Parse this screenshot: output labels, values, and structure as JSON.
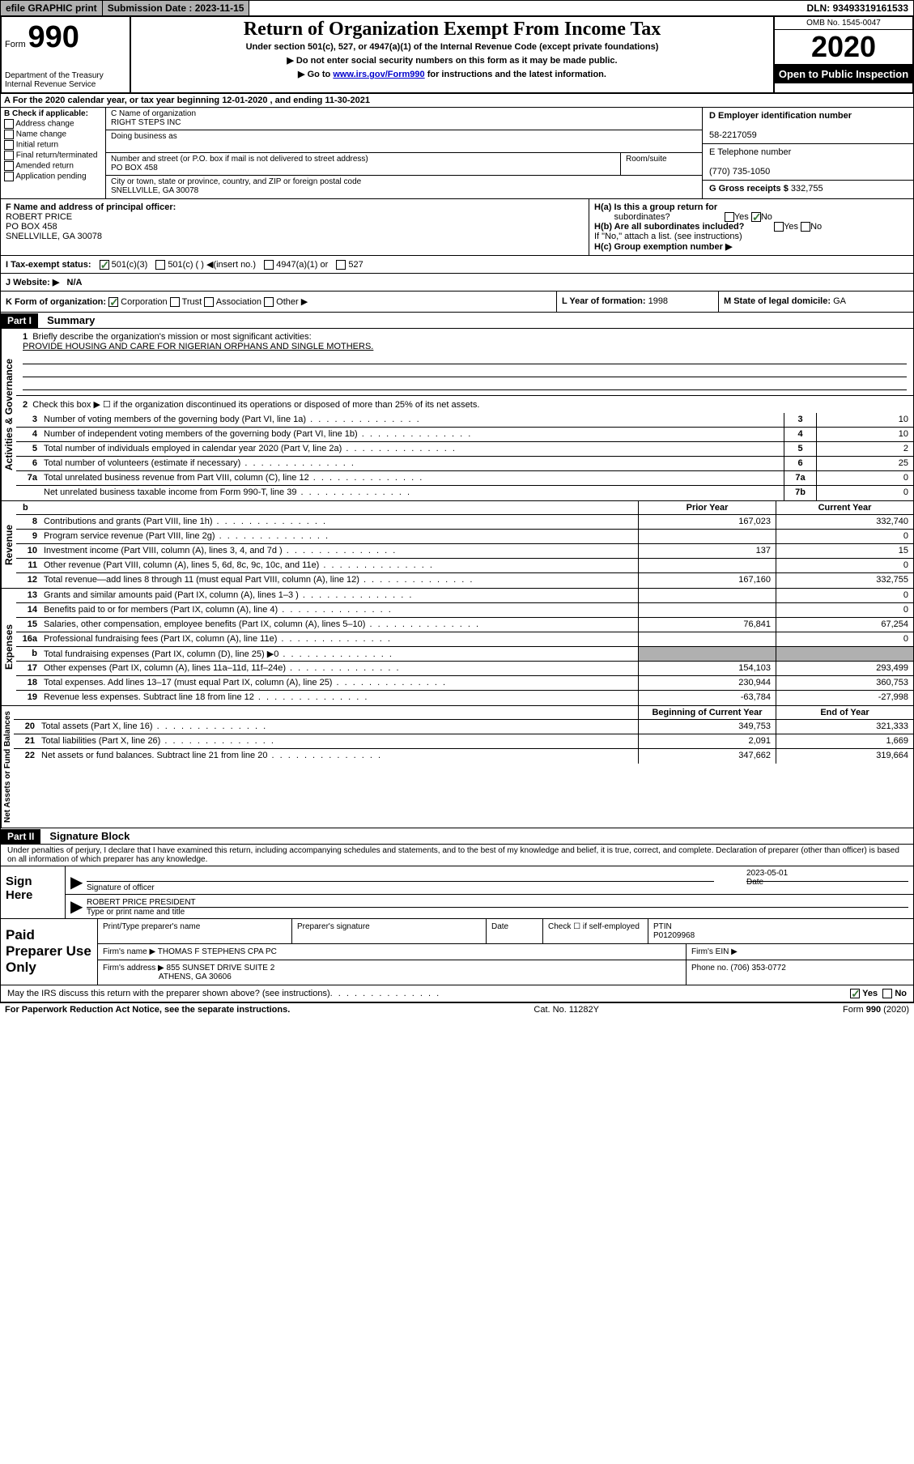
{
  "top_bar": {
    "efile": "efile GRAPHIC print",
    "submission_label": "Submission Date :",
    "submission_date": "2023-11-15",
    "dln_label": "DLN:",
    "dln": "93493319161533"
  },
  "header": {
    "form_label": "Form",
    "form_number": "990",
    "dept": "Department of the Treasury",
    "irs": "Internal Revenue Service",
    "title": "Return of Organization Exempt From Income Tax",
    "subtitle": "Under section 501(c), 527, or 4947(a)(1) of the Internal Revenue Code (except private foundations)",
    "note1": "▶ Do not enter social security numbers on this form as it may be made public.",
    "note2_pre": "▶ Go to ",
    "note2_link": "www.irs.gov/Form990",
    "note2_post": " for instructions and the latest information.",
    "omb": "OMB No. 1545-0047",
    "year": "2020",
    "open_public": "Open to Public Inspection"
  },
  "section_a": {
    "text": "A For the 2020 calendar year, or tax year beginning 12-01-2020    , and ending 11-30-2021"
  },
  "section_b": {
    "header": "B Check if applicable:",
    "items": [
      "Address change",
      "Name change",
      "Initial return",
      "Final return/terminated",
      "Amended return",
      "Application pending"
    ]
  },
  "section_c": {
    "name_label": "C Name of organization",
    "name": "RIGHT STEPS INC",
    "dba_label": "Doing business as",
    "dba": "",
    "street_label": "Number and street (or P.O. box if mail is not delivered to street address)",
    "street": "PO BOX 458",
    "room_label": "Room/suite",
    "city_label": "City or town, state or province, country, and ZIP or foreign postal code",
    "city": "SNELLVILLE, GA  30078"
  },
  "section_d": {
    "ein_label": "D Employer identification number",
    "ein": "58-2217059",
    "phone_label": "E Telephone number",
    "phone": "(770) 735-1050",
    "gross_label": "G Gross receipts $",
    "gross": "332,755"
  },
  "section_f": {
    "label": "F Name and address of principal officer:",
    "name": "ROBERT PRICE",
    "street": "PO BOX 458",
    "city": "SNELLVILLE, GA  30078"
  },
  "section_h": {
    "ha_label": "H(a)  Is this a group return for",
    "ha_sub": "subordinates?",
    "hb_label": "H(b)  Are all subordinates included?",
    "hb_note": "If \"No,\" attach a list. (see instructions)",
    "hc_label": "H(c)  Group exemption number ▶"
  },
  "section_i": {
    "label": "I    Tax-exempt status:",
    "opt1": "501(c)(3)",
    "opt2": "501(c) (  ) ◀(insert no.)",
    "opt3": "4947(a)(1) or",
    "opt4": "527"
  },
  "section_j": {
    "label": "J   Website: ▶",
    "value": "N/A"
  },
  "section_k": {
    "label": "K Form of organization:",
    "opts": [
      "Corporation",
      "Trust",
      "Association",
      "Other ▶"
    ],
    "l_label": "L Year of formation:",
    "l_value": "1998",
    "m_label": "M State of legal domicile:",
    "m_value": "GA"
  },
  "part1": {
    "header": "Part I",
    "title": "Summary",
    "line1_label": "Briefly describe the organization's mission or most significant activities:",
    "line1_value": "PROVIDE HOUSING AND CARE FOR NIGERIAN ORPHANS AND SINGLE MOTHERS.",
    "line2": "Check this box ▶ ☐  if the organization discontinued its operations or disposed of more than 25% of its net assets.",
    "governance_label": "Activities & Governance",
    "lines": [
      {
        "num": "3",
        "text": "Number of voting members of the governing body (Part VI, line 1a)",
        "box": "3",
        "val": "10"
      },
      {
        "num": "4",
        "text": "Number of independent voting members of the governing body (Part VI, line 1b)",
        "box": "4",
        "val": "10"
      },
      {
        "num": "5",
        "text": "Total number of individuals employed in calendar year 2020 (Part V, line 2a)",
        "box": "5",
        "val": "2"
      },
      {
        "num": "6",
        "text": "Total number of volunteers (estimate if necessary)",
        "box": "6",
        "val": "25"
      },
      {
        "num": "7a",
        "text": "Total unrelated business revenue from Part VIII, column (C), line 12",
        "box": "7a",
        "val": "0"
      },
      {
        "num": "",
        "text": "Net unrelated business taxable income from Form 990-T, line 39",
        "box": "7b",
        "val": "0"
      }
    ]
  },
  "revenue": {
    "label": "Revenue",
    "prior_header": "Prior Year",
    "current_header": "Current Year",
    "lines": [
      {
        "num": "8",
        "text": "Contributions and grants (Part VIII, line 1h)",
        "prior": "167,023",
        "current": "332,740"
      },
      {
        "num": "9",
        "text": "Program service revenue (Part VIII, line 2g)",
        "prior": "",
        "current": "0"
      },
      {
        "num": "10",
        "text": "Investment income (Part VIII, column (A), lines 3, 4, and 7d )",
        "prior": "137",
        "current": "15"
      },
      {
        "num": "11",
        "text": "Other revenue (Part VIII, column (A), lines 5, 6d, 8c, 9c, 10c, and 11e)",
        "prior": "",
        "current": "0"
      },
      {
        "num": "12",
        "text": "Total revenue—add lines 8 through 11 (must equal Part VIII, column (A), line 12)",
        "prior": "167,160",
        "current": "332,755"
      }
    ]
  },
  "expenses": {
    "label": "Expenses",
    "lines": [
      {
        "num": "13",
        "text": "Grants and similar amounts paid (Part IX, column (A), lines 1–3 )",
        "prior": "",
        "current": "0"
      },
      {
        "num": "14",
        "text": "Benefits paid to or for members (Part IX, column (A), line 4)",
        "prior": "",
        "current": "0"
      },
      {
        "num": "15",
        "text": "Salaries, other compensation, employee benefits (Part IX, column (A), lines 5–10)",
        "prior": "76,841",
        "current": "67,254"
      },
      {
        "num": "16a",
        "text": "Professional fundraising fees (Part IX, column (A), line 11e)",
        "prior": "",
        "current": "0"
      },
      {
        "num": "b",
        "text": "Total fundraising expenses (Part IX, column (D), line 25) ▶0",
        "prior": "SHADED",
        "current": "SHADED"
      },
      {
        "num": "17",
        "text": "Other expenses (Part IX, column (A), lines 11a–11d, 11f–24e)",
        "prior": "154,103",
        "current": "293,499"
      },
      {
        "num": "18",
        "text": "Total expenses. Add lines 13–17 (must equal Part IX, column (A), line 25)",
        "prior": "230,944",
        "current": "360,753"
      },
      {
        "num": "19",
        "text": "Revenue less expenses. Subtract line 18 from line 12",
        "prior": "-63,784",
        "current": "-27,998"
      }
    ]
  },
  "netassets": {
    "label": "Net Assets or Fund Balances",
    "begin_header": "Beginning of Current Year",
    "end_header": "End of Year",
    "lines": [
      {
        "num": "20",
        "text": "Total assets (Part X, line 16)",
        "prior": "349,753",
        "current": "321,333"
      },
      {
        "num": "21",
        "text": "Total liabilities (Part X, line 26)",
        "prior": "2,091",
        "current": "1,669"
      },
      {
        "num": "22",
        "text": "Net assets or fund balances. Subtract line 21 from line 20",
        "prior": "347,662",
        "current": "319,664"
      }
    ]
  },
  "part2": {
    "header": "Part II",
    "title": "Signature Block",
    "declaration": "Under penalties of perjury, I declare that I have examined this return, including accompanying schedules and statements, and to the best of my knowledge and belief, it is true, correct, and complete. Declaration of preparer (other than officer) is based on all information of which preparer has any knowledge."
  },
  "sign": {
    "label": "Sign Here",
    "sig_label": "Signature of officer",
    "date_label": "Date",
    "date": "2023-05-01",
    "name_title": "ROBERT PRICE  PRESIDENT",
    "name_label": "Type or print name and title"
  },
  "preparer": {
    "label": "Paid Preparer Use Only",
    "name_label": "Print/Type preparer's name",
    "sig_label": "Preparer's signature",
    "date_label": "Date",
    "check_label": "Check ☐ if self-employed",
    "ptin_label": "PTIN",
    "ptin": "P01209968",
    "firm_name_label": "Firm's name    ▶",
    "firm_name": "THOMAS F STEPHENS CPA PC",
    "firm_ein_label": "Firm's EIN ▶",
    "firm_addr_label": "Firm's address ▶",
    "firm_addr1": "855 SUNSET DRIVE SUITE 2",
    "firm_addr2": "ATHENS, GA  30606",
    "phone_label": "Phone no.",
    "phone": "(706) 353-0772"
  },
  "discuss": {
    "text": "May the IRS discuss this return with the preparer shown above? (see instructions)",
    "yes": "Yes",
    "no": "No"
  },
  "footer": {
    "left": "For Paperwork Reduction Act Notice, see the separate instructions.",
    "mid": "Cat. No. 11282Y",
    "right": "Form 990 (2020)"
  }
}
